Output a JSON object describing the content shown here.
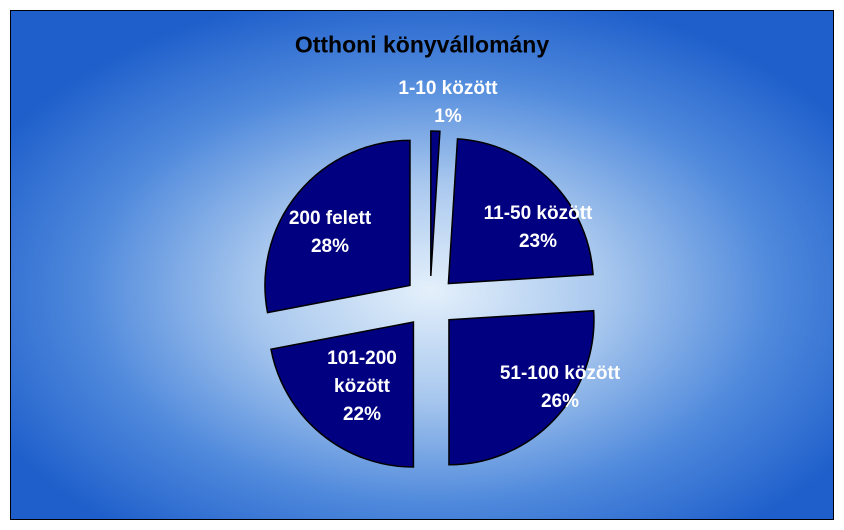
{
  "chart_data": {
    "type": "pie",
    "title": "Otthoni könyvállomány",
    "categories": [
      "1-10 között",
      "11-50 között",
      "51-100 között",
      "101-200 között",
      "200 felett"
    ],
    "values": [
      1,
      23,
      26,
      22,
      28
    ],
    "value_labels": [
      "1%",
      "23%",
      "26%",
      "22%",
      "28%"
    ],
    "color": "#000080"
  }
}
